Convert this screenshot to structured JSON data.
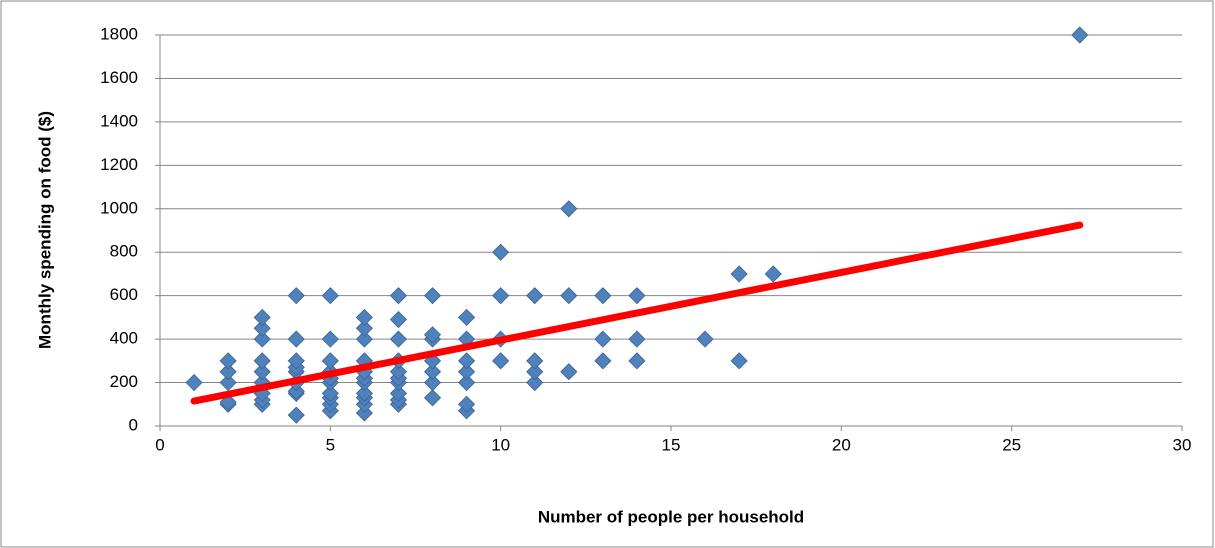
{
  "chart_data": {
    "type": "scatter",
    "xlabel": "Number of people per household",
    "ylabel": "Monthly spending on food  ($)",
    "color": "#4f81bd",
    "x": [
      1,
      2,
      2,
      2,
      2,
      2,
      3,
      3,
      3,
      3,
      3,
      3,
      3,
      3,
      3,
      4,
      4,
      4,
      4,
      4,
      4,
      4,
      4,
      4,
      5,
      5,
      5,
      5,
      5,
      5,
      5,
      5,
      5,
      5,
      6,
      6,
      6,
      6,
      6,
      6,
      6,
      6,
      6,
      6,
      6,
      7,
      7,
      7,
      7,
      7,
      7,
      7,
      7,
      7,
      7,
      8,
      8,
      8,
      8,
      8,
      8,
      8,
      9,
      9,
      9,
      9,
      9,
      9,
      9,
      10,
      10,
      10,
      10,
      11,
      11,
      11,
      11,
      12,
      12,
      12,
      13,
      13,
      13,
      14,
      14,
      14,
      16,
      17,
      17,
      18,
      27
    ],
    "values": [
      200,
      100,
      110,
      200,
      250,
      300,
      100,
      120,
      150,
      200,
      250,
      300,
      400,
      450,
      500,
      50,
      150,
      160,
      200,
      250,
      270,
      300,
      400,
      600,
      70,
      100,
      130,
      150,
      200,
      220,
      250,
      300,
      400,
      600,
      60,
      100,
      130,
      150,
      200,
      220,
      250,
      300,
      400,
      450,
      500,
      100,
      120,
      150,
      200,
      220,
      250,
      300,
      400,
      490,
      600,
      130,
      200,
      250,
      300,
      400,
      420,
      600,
      70,
      100,
      200,
      250,
      300,
      400,
      500,
      300,
      400,
      600,
      800,
      200,
      250,
      300,
      600,
      250,
      600,
      1000,
      300,
      400,
      600,
      300,
      400,
      600,
      400,
      300,
      700,
      700,
      1800
    ],
    "trendline": {
      "x": [
        1,
        27
      ],
      "y": [
        115,
        925
      ],
      "color": "#ff0000"
    },
    "xlim": [
      0,
      30
    ],
    "xticks": [
      0,
      5,
      10,
      15,
      20,
      25,
      30
    ],
    "ylim": [
      0,
      1800
    ],
    "yticks": [
      0,
      200,
      400,
      600,
      800,
      1000,
      1200,
      1400,
      1600,
      1800
    ],
    "grid": true
  }
}
